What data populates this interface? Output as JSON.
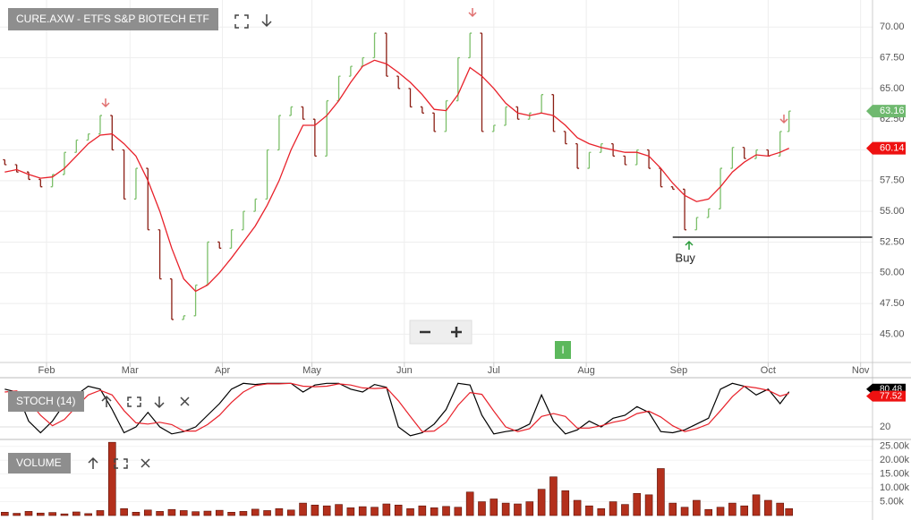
{
  "chart_data": [
    {
      "type": "ohlc",
      "title": "CURE.AXW - ETFS S&P BIOTECH ETF",
      "x": [
        -14,
        -10,
        -6,
        -2,
        2,
        6,
        10,
        14,
        18,
        22,
        26,
        30,
        34,
        38,
        42,
        46,
        50,
        54,
        58,
        62,
        66,
        70,
        74,
        78,
        82,
        86,
        90,
        94,
        98,
        102,
        106,
        110,
        114,
        118,
        122,
        126,
        130,
        134,
        138,
        142,
        146,
        150,
        154,
        158,
        162,
        166,
        170,
        174,
        178,
        182,
        186,
        190,
        194,
        198,
        202,
        206,
        210,
        214,
        218,
        222,
        226,
        230,
        234,
        238,
        242,
        246,
        249
      ],
      "open": [
        59.2,
        58.8,
        58.2,
        57.6,
        57.0,
        58.0,
        59.8,
        60.8,
        61.3,
        62.8,
        60.0,
        56.0,
        58.5,
        53.5,
        49.5,
        46.2,
        46.5,
        49.0,
        52.5,
        52.0,
        53.5,
        55.0,
        56.0,
        60.0,
        62.8,
        63.5,
        62.5,
        59.5,
        64.0,
        66.0,
        66.8,
        67.5,
        69.5,
        66.0,
        65.0,
        63.5,
        63.0,
        61.5,
        64.0,
        67.5,
        69.5,
        61.5,
        62.0,
        63.5,
        62.5,
        63.0,
        64.5,
        61.5,
        60.5,
        58.5,
        59.8,
        60.5,
        59.5,
        58.8,
        60.0,
        58.5,
        57.0,
        56.8,
        53.5,
        54.5,
        55.2,
        58.5,
        60.2,
        59.3,
        60.0,
        59.5,
        61.5
      ],
      "close": [
        58.8,
        58.2,
        57.6,
        57.0,
        58.0,
        59.8,
        60.8,
        61.3,
        62.8,
        60.0,
        56.0,
        58.5,
        53.5,
        49.5,
        46.2,
        46.5,
        49.0,
        52.5,
        52.0,
        53.5,
        55.0,
        56.0,
        60.0,
        62.8,
        63.5,
        62.5,
        59.5,
        64.0,
        66.0,
        66.8,
        67.5,
        69.5,
        66.0,
        65.0,
        63.5,
        63.0,
        61.5,
        64.0,
        67.5,
        69.5,
        61.5,
        62.0,
        63.5,
        62.5,
        63.0,
        64.5,
        61.5,
        60.5,
        58.5,
        59.8,
        60.5,
        59.5,
        58.8,
        60.0,
        58.5,
        57.0,
        56.8,
        53.5,
        54.5,
        55.2,
        58.5,
        60.2,
        59.3,
        60.0,
        59.5,
        61.5,
        63.16
      ],
      "up_color": "#7cbf6a",
      "down_color": "#8b1e14",
      "line": {
        "color": "#e8212a",
        "values": [
          58.2,
          58.4,
          58.0,
          57.7,
          57.8,
          58.5,
          59.5,
          60.5,
          61.2,
          61.3,
          60.5,
          59.5,
          57.5,
          55.0,
          52.0,
          49.5,
          48.5,
          49.0,
          50.0,
          51.2,
          52.5,
          53.8,
          55.5,
          57.5,
          60.0,
          62.0,
          62.0,
          62.8,
          64.0,
          65.5,
          66.8,
          67.3,
          67.0,
          66.3,
          65.5,
          64.5,
          63.3,
          63.2,
          64.5,
          66.7,
          66.0,
          65.0,
          63.8,
          63.0,
          62.8,
          63.0,
          62.8,
          62.0,
          61.0,
          60.5,
          60.2,
          60.0,
          59.8,
          59.8,
          59.5,
          58.5,
          57.3,
          56.3,
          55.8,
          56.0,
          57.0,
          58.2,
          59.0,
          59.6,
          59.5,
          59.8,
          60.14
        ]
      },
      "xlim": [
        -15.6,
        277
      ],
      "xticks": [
        {
          "value": 0,
          "label": "Feb"
        },
        {
          "value": 28,
          "label": "Mar"
        },
        {
          "value": 59,
          "label": "Apr"
        },
        {
          "value": 89,
          "label": "May"
        },
        {
          "value": 120,
          "label": "Jun"
        },
        {
          "value": 150,
          "label": "Jul"
        },
        {
          "value": 181,
          "label": "Aug"
        },
        {
          "value": 212,
          "label": "Sep"
        },
        {
          "value": 242,
          "label": "Oct"
        },
        {
          "value": 273,
          "label": "Nov"
        }
      ],
      "ylim": [
        42.7,
        72.2
      ],
      "yticks": [
        {
          "value": 45,
          "label": "45.00"
        },
        {
          "value": 47.5,
          "label": "47.50"
        },
        {
          "value": 50,
          "label": "50.00"
        },
        {
          "value": 52.5,
          "label": "52.50"
        },
        {
          "value": 55,
          "label": "55.00"
        },
        {
          "value": 57.5,
          "label": "57.50"
        },
        {
          "value": 60,
          "label": "60.00"
        },
        {
          "value": 62.5,
          "label": "62.50"
        },
        {
          "value": 65,
          "label": "65.00"
        },
        {
          "value": 67.5,
          "label": "67.50"
        },
        {
          "value": 70,
          "label": "70.00"
        }
      ],
      "grid": true,
      "level": {
        "label": "Buy",
        "value": 52.9,
        "x": 210,
        "color": "#000000"
      },
      "tag_colors": [
        "#6fb96f",
        "#ee1111"
      ],
      "badge": "I"
    },
    {
      "type": "line",
      "title": "STOCH (14)",
      "series": [
        {
          "color": "#000000",
          "values": [
            85,
            80,
            30,
            10,
            30,
            60,
            75,
            90,
            85,
            50,
            10,
            20,
            45,
            20,
            8,
            12,
            20,
            40,
            60,
            85,
            95,
            93,
            95,
            95,
            95,
            80,
            92,
            95,
            95,
            85,
            80,
            93,
            88,
            20,
            5,
            10,
            25,
            50,
            95,
            92,
            40,
            8,
            12,
            15,
            25,
            75,
            30,
            8,
            15,
            30,
            20,
            35,
            40,
            55,
            45,
            12,
            10,
            15,
            25,
            35,
            85,
            95,
            90,
            75,
            85,
            60,
            80.48
          ]
        },
        {
          "color": "#e8212a",
          "values": [
            80,
            82,
            65,
            40,
            22,
            33,
            55,
            75,
            83,
            75,
            48,
            27,
            25,
            28,
            24,
            13,
            13,
            24,
            40,
            62,
            80,
            91,
            94,
            94,
            95,
            90,
            89,
            90,
            94,
            92,
            87,
            86,
            87,
            65,
            38,
            12,
            13,
            28,
            57,
            79,
            76,
            47,
            20,
            12,
            17,
            38,
            43,
            38,
            18,
            18,
            22,
            28,
            32,
            43,
            47,
            37,
            22,
            12,
            17,
            25,
            48,
            72,
            90,
            87,
            83,
            73,
            77.52
          ]
        }
      ],
      "ylim": [
        0,
        100
      ],
      "yticks": [
        20
      ]
    },
    {
      "type": "bar",
      "title": "VOLUME",
      "color": "#b3301c",
      "values": [
        1200,
        800,
        1500,
        900,
        1100,
        600,
        1300,
        700,
        1800,
        26500,
        2500,
        1200,
        2000,
        1500,
        2200,
        1800,
        1400,
        1600,
        1900,
        1200,
        1500,
        2300,
        1800,
        2500,
        2000,
        4500,
        3800,
        3500,
        4000,
        2800,
        3200,
        3000,
        4200,
        3800,
        2500,
        3500,
        2800,
        3300,
        3000,
        8500,
        5000,
        6000,
        4500,
        4200,
        5000,
        9500,
        14000,
        9000,
        5500,
        3500,
        2500,
        5000,
        4000,
        8000,
        7500,
        17000,
        4500,
        3000,
        5500,
        2200,
        3000,
        4500,
        3500,
        7500,
        5500,
        4500,
        2500
      ],
      "ylim": [
        0,
        27200
      ],
      "yticks": [
        {
          "value": 5000,
          "label": "5.00k"
        },
        {
          "value": 10000,
          "label": "10.00k"
        },
        {
          "value": 15000,
          "label": "15.00k"
        },
        {
          "value": 20000,
          "label": "20.00k"
        },
        {
          "value": 25000,
          "label": "25.00k"
        }
      ]
    }
  ]
}
